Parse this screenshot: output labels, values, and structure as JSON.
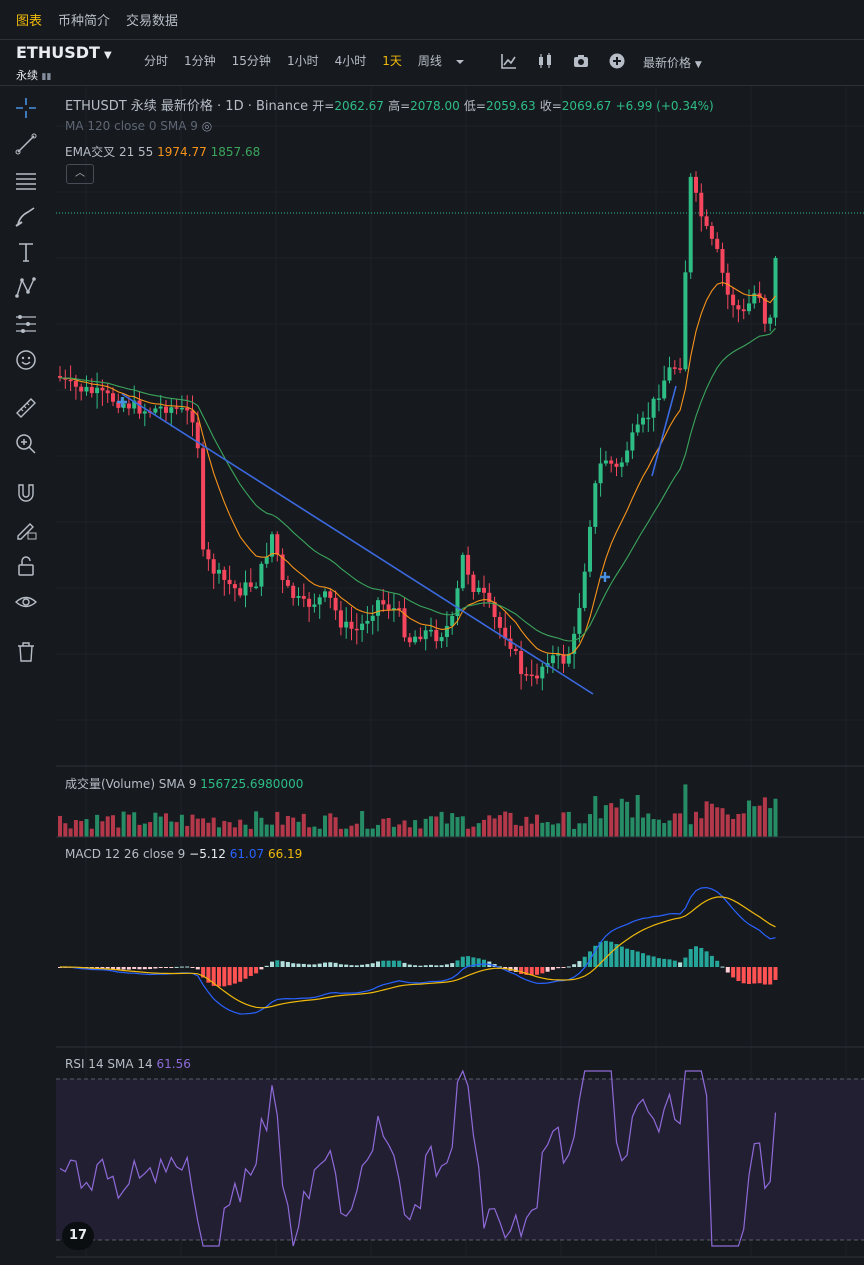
{
  "tabs": [
    {
      "label": "图表",
      "active": true
    },
    {
      "label": "币种简介",
      "active": false
    },
    {
      "label": "交易数据",
      "active": false
    }
  ],
  "symbol": {
    "name": "ETHUSDT",
    "sub": "永续"
  },
  "intervals": [
    {
      "label": "分时"
    },
    {
      "label": "1分钟"
    },
    {
      "label": "15分钟"
    },
    {
      "label": "1小时"
    },
    {
      "label": "4小时"
    },
    {
      "label": "1天",
      "active": true
    },
    {
      "label": "周线"
    }
  ],
  "price_type": "最新价格",
  "legend": {
    "title": "ETHUSDT 永续 最新价格 · 1D · Binance",
    "open_label": "开=",
    "open": "2062.67",
    "high_label": "高=",
    "high": "2078.00",
    "low_label": "低=",
    "low": "2059.63",
    "close_label": "收=",
    "close": "2069.67",
    "change": "+6.99 (+0.34%)",
    "ma": "MA 120 close 0 SMA 9",
    "ema_label": "EMA交叉 21 55",
    "ema21": "1974.77",
    "ema55": "1857.68"
  },
  "volume": {
    "label": "成交量(Volume) SMA 9",
    "value": "156725.6980000"
  },
  "macd": {
    "label": "MACD 12 26 close 9",
    "hist": "−5.12",
    "macd": "61.07",
    "signal": "66.19"
  },
  "rsi": {
    "label": "RSI 14 SMA 14",
    "value": "61.56"
  },
  "logo": "17",
  "colors": {
    "up": "#2ebd85",
    "down": "#f6465d",
    "ema21": "#f7931a",
    "ema55": "#3ba55c",
    "trend": "#3b6ae0",
    "macd": "#2962ff",
    "signal": "#f0b90b",
    "rsi": "#8e6ad8"
  },
  "icons": [
    "crosshair-icon",
    "trend-line-icon",
    "fib-icon",
    "brush-icon",
    "text-icon",
    "pattern-icon",
    "forecast-icon",
    "emoji-icon",
    "ruler-icon",
    "zoom-icon",
    "magnet-icon",
    "lock-draw-icon",
    "lock-icon",
    "eye-icon",
    "trash-icon"
  ]
}
